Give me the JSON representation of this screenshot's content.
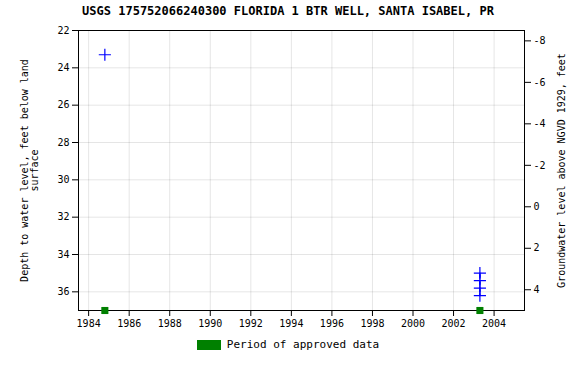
{
  "chart_data": {
    "type": "scatter",
    "title": "USGS 175752066240300 FLORIDA 1 BTR WELL, SANTA ISABEL, PR",
    "ylabel": "Depth to water level, feet below land\nsurface",
    "y2label": "Groundwater level above NGVD 1929, feet",
    "xlim": [
      1983.5,
      2005.5
    ],
    "xticks": [
      1984,
      1986,
      1988,
      1990,
      1992,
      1994,
      1996,
      1998,
      2000,
      2002,
      2004
    ],
    "ylim": [
      37,
      22
    ],
    "yticks": [
      22,
      24,
      26,
      28,
      30,
      32,
      34,
      36
    ],
    "y2lim": [
      5,
      -8.5
    ],
    "y2ticks": [
      4,
      2,
      0,
      -2,
      -4,
      -6,
      -8
    ],
    "grid": true,
    "legend": "bottom",
    "series": [
      {
        "type": "scatter",
        "color": "blue",
        "marker": "plus",
        "x": [
          1984.8
        ],
        "values": [
          23.3
        ]
      },
      {
        "type": "line",
        "color": "blue",
        "marker": "plus",
        "line_style": "dashed",
        "x": [
          2003.3,
          2003.3,
          2003.3,
          2003.3
        ],
        "values": [
          35.0,
          35.4,
          35.8,
          36.2
        ]
      },
      {
        "name": "Period of approved data",
        "type": "scatter",
        "color": "#008000",
        "marker": "square",
        "x": [
          1984.8,
          2003.3
        ],
        "values": [
          37.0,
          37.0
        ]
      }
    ]
  }
}
